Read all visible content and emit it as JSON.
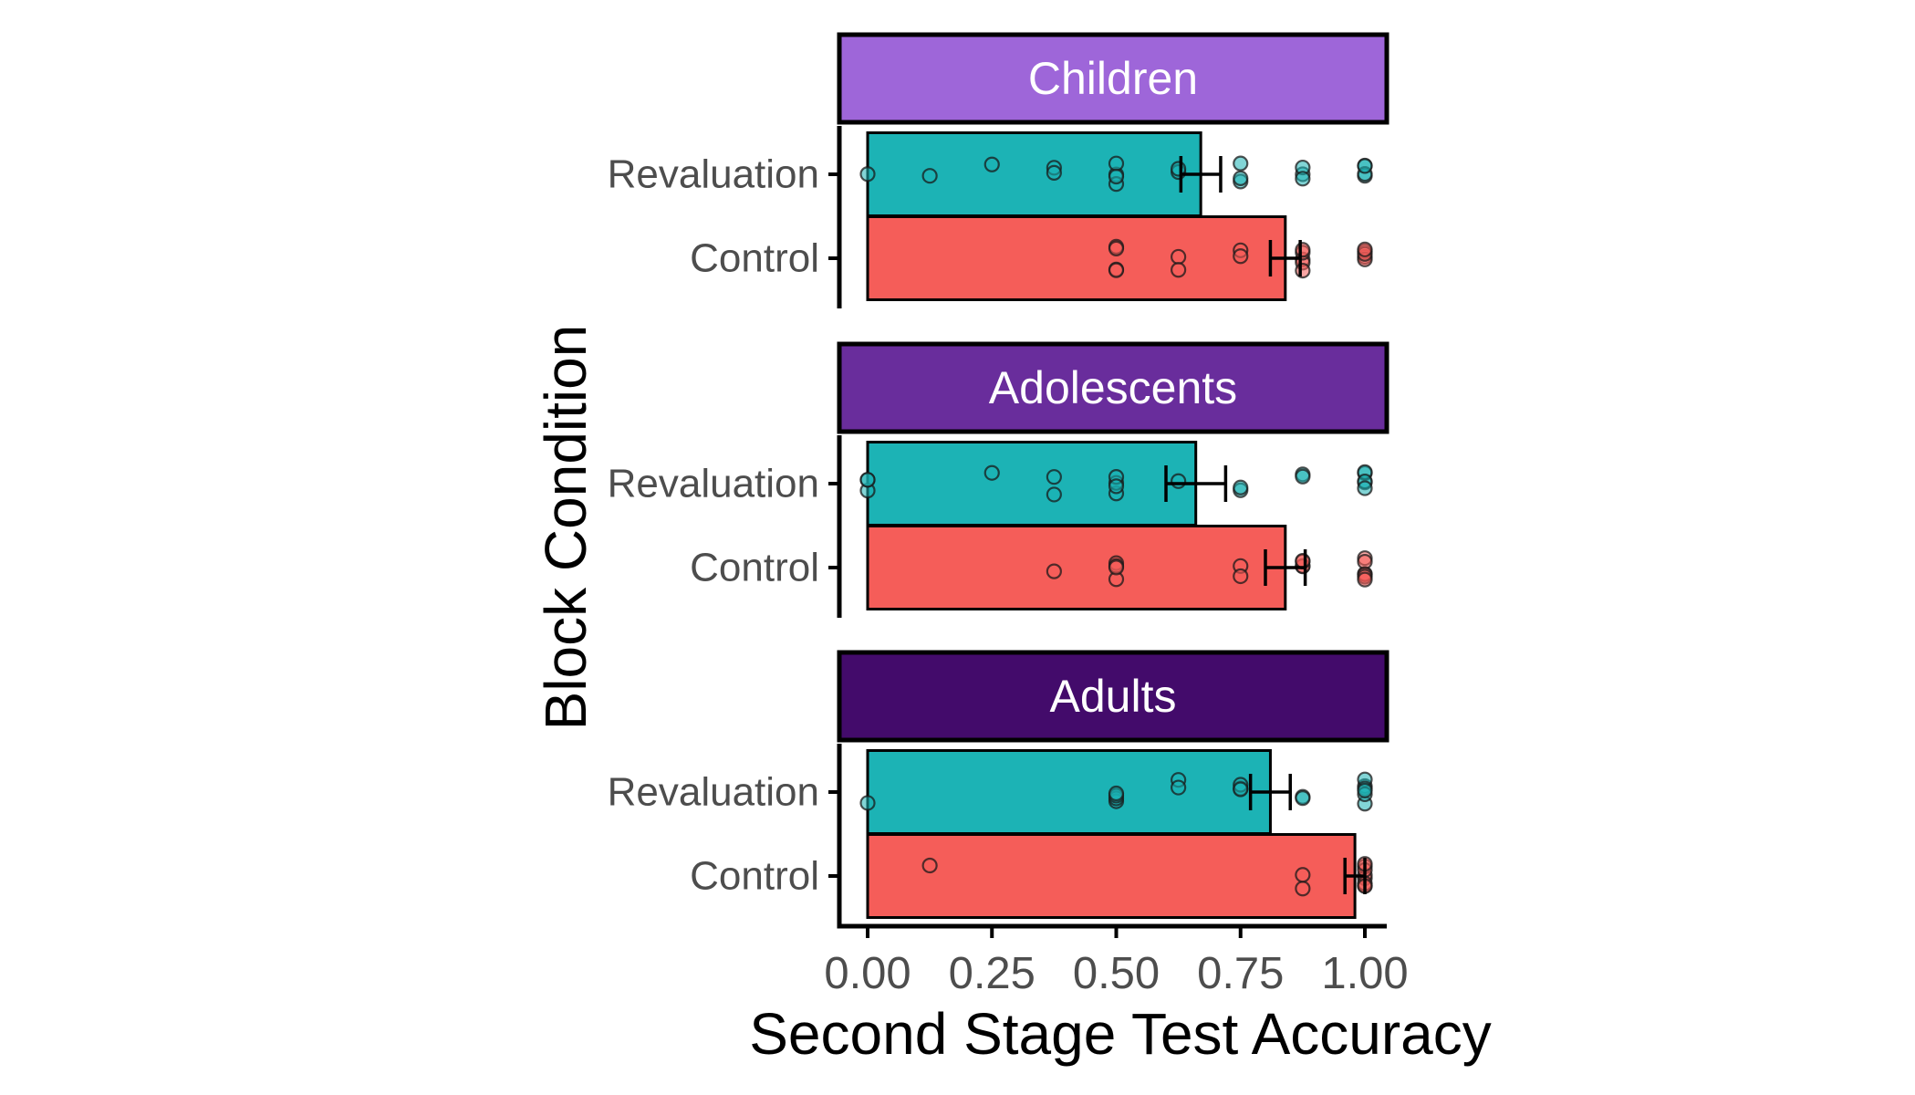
{
  "chart_data": {
    "type": "bar",
    "orientation": "horizontal",
    "xlabel": "Second Stage Test Accuracy",
    "ylabel": "Block Condition",
    "xlim": [
      0,
      1
    ],
    "x_ticks": [
      "0.00",
      "0.25",
      "0.50",
      "0.75",
      "1.00"
    ],
    "categories": [
      "Revaluation",
      "Control"
    ],
    "colors": {
      "Revaluation": "#1cb3b5",
      "Control": "#f55d59"
    },
    "facets": [
      {
        "name": "Children",
        "strip_color": "#9e66d9",
        "values": {
          "Revaluation": 0.67,
          "Control": 0.84
        },
        "errors": {
          "Revaluation": 0.04,
          "Control": 0.03
        },
        "points": {
          "Revaluation": [
            0,
            0.125,
            0.25,
            0.375,
            0.375,
            0.5,
            0.5,
            0.5,
            0.5,
            0.625,
            0.625,
            0.75,
            0.75,
            0.75,
            0.875,
            0.875,
            0.875,
            1,
            1,
            1,
            1
          ],
          "Control": [
            0.5,
            0.5,
            0.5,
            0.5,
            0.625,
            0.625,
            0.75,
            0.75,
            0.875,
            0.875,
            0.875,
            0.875,
            0.875,
            1,
            1,
            1,
            1,
            1
          ]
        }
      },
      {
        "name": "Adolescents",
        "strip_color": "#692d9c",
        "values": {
          "Revaluation": 0.66,
          "Control": 0.84
        },
        "errors": {
          "Revaluation": 0.06,
          "Control": 0.04
        },
        "points": {
          "Revaluation": [
            0,
            0,
            0,
            0.25,
            0.375,
            0.375,
            0.5,
            0.5,
            0.5,
            0.5,
            0.625,
            0.75,
            0.75,
            0.875,
            0.875,
            1,
            1,
            1,
            1,
            1
          ],
          "Control": [
            0.375,
            0.5,
            0.5,
            0.5,
            0.5,
            0.75,
            0.75,
            0.875,
            0.875,
            0.875,
            0.875,
            1,
            1,
            1,
            1,
            1,
            1
          ]
        }
      },
      {
        "name": "Adults",
        "strip_color": "#430b6b",
        "values": {
          "Revaluation": 0.81,
          "Control": 0.98
        },
        "errors": {
          "Revaluation": 0.04,
          "Control": 0.02
        },
        "points": {
          "Revaluation": [
            0,
            0.5,
            0.5,
            0.5,
            0.5,
            0.625,
            0.625,
            0.75,
            0.75,
            0.75,
            0.875,
            0.875,
            1,
            1,
            1,
            1,
            1,
            1
          ],
          "Control": [
            0.125,
            0.875,
            0.875,
            1,
            1,
            1,
            1,
            1,
            1,
            1,
            1
          ]
        }
      }
    ]
  }
}
